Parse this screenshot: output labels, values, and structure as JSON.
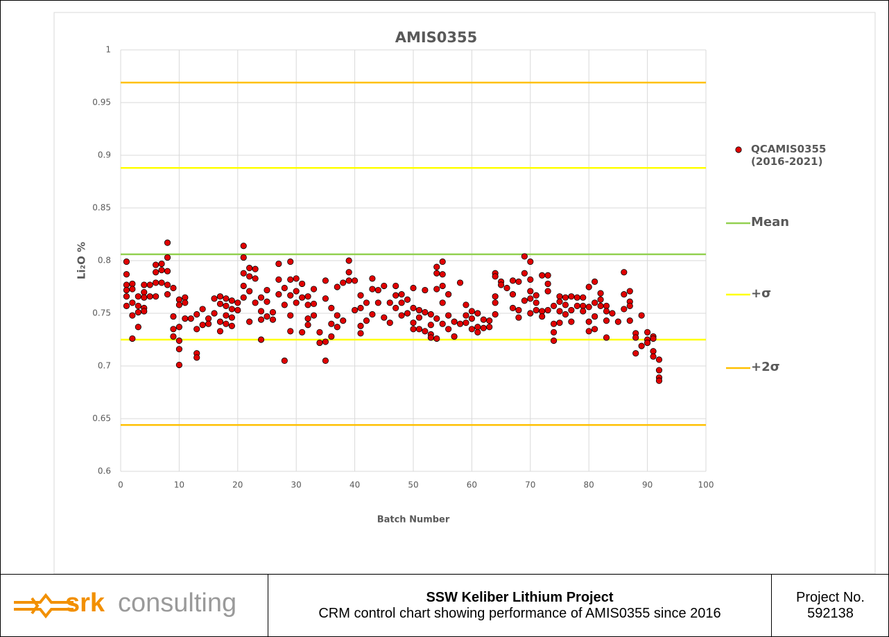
{
  "chart_data": {
    "type": "scatter",
    "title": "AMIS0355",
    "x_label": "Batch Number",
    "y_label": "Li₂O %",
    "xlim": [
      0,
      100
    ],
    "xticks": [
      0,
      10,
      20,
      30,
      40,
      50,
      60,
      70,
      80,
      90,
      100
    ],
    "ylim": [
      0.6,
      1
    ],
    "yticks": [
      0.6,
      0.65,
      0.7,
      0.75,
      0.8,
      0.85,
      0.9,
      0.95,
      1
    ],
    "grid": true,
    "series": [
      {
        "name": "QCAMIS0355 (2016-2021)",
        "color": "#e00000",
        "x": [
          1,
          1,
          1,
          1,
          1,
          1,
          2,
          2,
          2,
          2,
          2,
          3,
          3,
          3,
          3,
          4,
          4,
          4,
          4,
          4,
          5,
          5,
          6,
          6,
          6,
          6,
          7,
          7,
          7,
          8,
          8,
          8,
          8,
          8,
          9,
          9,
          9,
          9,
          10,
          10,
          10,
          10,
          10,
          10,
          11,
          11,
          11,
          12,
          13,
          13,
          13,
          13,
          14,
          14,
          15,
          15,
          16,
          16,
          17,
          17,
          17,
          17,
          18,
          18,
          18,
          18,
          19,
          19,
          19,
          19,
          20,
          20,
          21,
          21,
          21,
          21,
          21,
          22,
          22,
          22,
          22,
          23,
          23,
          23,
          24,
          24,
          24,
          24,
          25,
          25,
          25,
          26,
          26,
          27,
          27,
          27,
          28,
          28,
          28,
          29,
          29,
          29,
          29,
          29,
          30,
          30,
          30,
          31,
          31,
          31,
          32,
          32,
          32,
          32,
          33,
          33,
          33,
          34,
          34,
          35,
          35,
          35,
          35,
          36,
          36,
          36,
          37,
          37,
          37,
          38,
          38,
          39,
          39,
          39,
          40,
          40,
          41,
          41,
          41,
          41,
          42,
          42,
          43,
          43,
          43,
          44,
          44,
          45,
          45,
          46,
          46,
          47,
          47,
          47,
          48,
          48,
          48,
          49,
          49,
          50,
          50,
          50,
          50,
          51,
          51,
          51,
          52,
          52,
          52,
          53,
          53,
          53,
          53,
          54,
          54,
          54,
          54,
          54,
          55,
          55,
          55,
          55,
          55,
          56,
          56,
          56,
          57,
          57,
          58,
          58,
          59,
          59,
          59,
          60,
          60,
          60,
          61,
          61,
          61,
          62,
          62,
          63,
          63,
          64,
          64,
          64,
          64,
          64,
          65,
          65,
          66,
          67,
          67,
          67,
          68,
          68,
          68,
          69,
          69,
          69,
          70,
          70,
          70,
          70,
          70,
          71,
          71,
          71,
          72,
          72,
          72,
          73,
          73,
          73,
          73,
          74,
          74,
          74,
          74,
          75,
          75,
          75,
          75,
          76,
          76,
          76,
          77,
          77,
          77,
          78,
          78,
          79,
          79,
          79,
          80,
          80,
          80,
          80,
          81,
          81,
          81,
          81,
          82,
          82,
          82,
          83,
          83,
          83,
          83,
          84,
          85,
          86,
          86,
          86,
          87,
          87,
          87,
          87,
          88,
          88,
          88,
          89,
          89,
          90,
          90,
          90,
          91,
          91,
          91,
          91,
          92,
          92,
          92,
          92
        ],
        "values": [
          0.799,
          0.787,
          0.777,
          0.766,
          0.757,
          0.772,
          0.778,
          0.76,
          0.748,
          0.726,
          0.773,
          0.766,
          0.757,
          0.751,
          0.737,
          0.777,
          0.77,
          0.765,
          0.755,
          0.752,
          0.777,
          0.766,
          0.796,
          0.789,
          0.779,
          0.766,
          0.797,
          0.791,
          0.779,
          0.817,
          0.803,
          0.79,
          0.777,
          0.768,
          0.774,
          0.747,
          0.735,
          0.728,
          0.763,
          0.758,
          0.737,
          0.724,
          0.716,
          0.701,
          0.765,
          0.76,
          0.745,
          0.745,
          0.749,
          0.735,
          0.712,
          0.708,
          0.754,
          0.739,
          0.745,
          0.74,
          0.764,
          0.75,
          0.766,
          0.759,
          0.742,
          0.733,
          0.764,
          0.757,
          0.748,
          0.74,
          0.762,
          0.754,
          0.746,
          0.738,
          0.76,
          0.753,
          0.814,
          0.803,
          0.788,
          0.776,
          0.765,
          0.793,
          0.785,
          0.771,
          0.742,
          0.792,
          0.783,
          0.76,
          0.765,
          0.752,
          0.744,
          0.725,
          0.772,
          0.761,
          0.747,
          0.751,
          0.744,
          0.797,
          0.782,
          0.768,
          0.774,
          0.758,
          0.705,
          0.799,
          0.782,
          0.767,
          0.748,
          0.733,
          0.783,
          0.771,
          0.76,
          0.778,
          0.765,
          0.732,
          0.766,
          0.758,
          0.745,
          0.739,
          0.773,
          0.759,
          0.748,
          0.732,
          0.722,
          0.781,
          0.764,
          0.723,
          0.705,
          0.755,
          0.74,
          0.728,
          0.775,
          0.748,
          0.737,
          0.779,
          0.743,
          0.8,
          0.789,
          0.781,
          0.781,
          0.753,
          0.767,
          0.755,
          0.738,
          0.731,
          0.76,
          0.743,
          0.783,
          0.773,
          0.749,
          0.772,
          0.76,
          0.776,
          0.746,
          0.76,
          0.741,
          0.776,
          0.767,
          0.755,
          0.768,
          0.76,
          0.748,
          0.763,
          0.75,
          0.774,
          0.755,
          0.741,
          0.735,
          0.753,
          0.746,
          0.735,
          0.772,
          0.751,
          0.733,
          0.749,
          0.739,
          0.73,
          0.727,
          0.794,
          0.788,
          0.773,
          0.745,
          0.726,
          0.799,
          0.787,
          0.776,
          0.76,
          0.74,
          0.768,
          0.748,
          0.735,
          0.742,
          0.728,
          0.779,
          0.74,
          0.758,
          0.748,
          0.741,
          0.752,
          0.745,
          0.735,
          0.75,
          0.737,
          0.732,
          0.744,
          0.736,
          0.743,
          0.737,
          0.788,
          0.785,
          0.766,
          0.76,
          0.749,
          0.78,
          0.777,
          0.774,
          0.781,
          0.768,
          0.755,
          0.78,
          0.753,
          0.746,
          0.804,
          0.788,
          0.762,
          0.799,
          0.782,
          0.771,
          0.764,
          0.75,
          0.767,
          0.76,
          0.753,
          0.786,
          0.752,
          0.747,
          0.786,
          0.778,
          0.771,
          0.753,
          0.757,
          0.74,
          0.732,
          0.724,
          0.766,
          0.761,
          0.752,
          0.741,
          0.765,
          0.758,
          0.749,
          0.766,
          0.753,
          0.742,
          0.765,
          0.757,
          0.765,
          0.757,
          0.752,
          0.775,
          0.756,
          0.742,
          0.733,
          0.78,
          0.76,
          0.747,
          0.735,
          0.769,
          0.763,
          0.757,
          0.757,
          0.752,
          0.743,
          0.727,
          0.75,
          0.742,
          0.789,
          0.768,
          0.754,
          0.771,
          0.761,
          0.757,
          0.743,
          0.731,
          0.727,
          0.712,
          0.748,
          0.719,
          0.732,
          0.725,
          0.722,
          0.728,
          0.726,
          0.714,
          0.709,
          0.706,
          0.696,
          0.689,
          0.686
        ]
      }
    ],
    "reference_lines": [
      {
        "name": "Mean",
        "color": "#92d050",
        "values": [
          0.806
        ]
      },
      {
        "name": "+σ",
        "color": "#ffff00",
        "values": [
          0.888,
          0.725
        ]
      },
      {
        "name": "+2σ",
        "color": "#ffc000",
        "values": [
          0.969,
          0.644
        ]
      }
    ]
  },
  "footer": {
    "logo_bold": "srk",
    "logo_text": "consulting",
    "project": "SSW Keliber Lithium Project",
    "caption": "CRM control chart showing performance of AMIS0355 since 2016",
    "project_no_label": "Project No.",
    "project_no": "592138"
  }
}
